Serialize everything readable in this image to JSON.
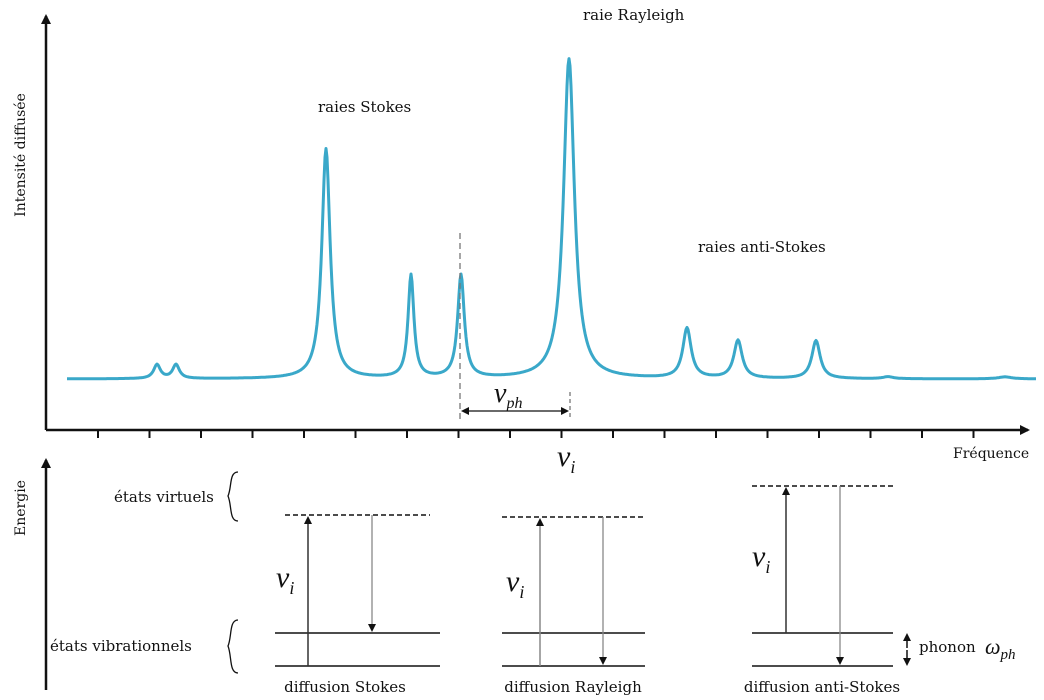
{
  "spectrum": {
    "y_axis_label": "Intensité diffusée",
    "x_axis_label": "Fréquence",
    "stokes_label": "raies Stokes",
    "rayleigh_label": "raie Rayleigh",
    "anti_stokes_label": "raies anti-Stokes",
    "nu_ph_main": "ν",
    "nu_ph_sub": "ph",
    "nu_i_label": "ν",
    "nu_i_sub": "i",
    "curve_color": "#3aa8c9"
  },
  "energy": {
    "y_axis_label": "Energie",
    "virtual_states_label": "états virtuels",
    "vibrational_states_label": "états vibrationnels",
    "phonon_label": "phonon",
    "phonon_symbol": "ω",
    "phonon_sub": "ph",
    "nu_symbol": "ν",
    "nu_sub": "i",
    "processes": [
      {
        "caption": "diffusion Stokes"
      },
      {
        "caption": "diffusion Rayleigh"
      },
      {
        "caption": "diffusion anti-Stokes"
      }
    ]
  }
}
